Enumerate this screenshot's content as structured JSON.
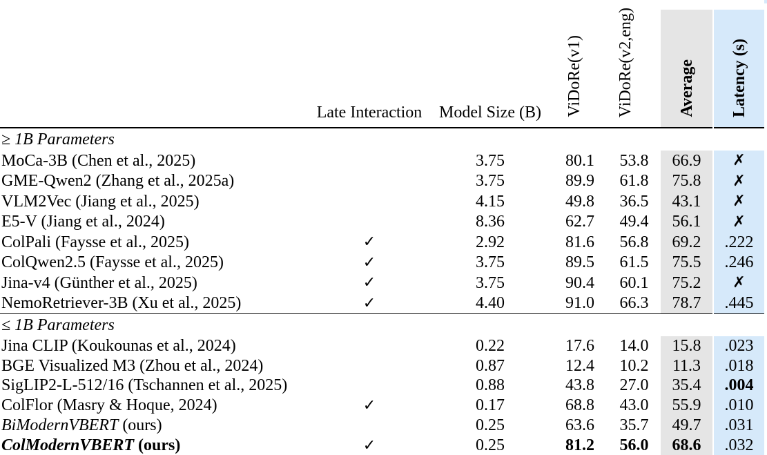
{
  "colors": {
    "average_col_bg": "#e5e5e5",
    "latency_col_bg": "#d6e9fa"
  },
  "icons": {
    "check": "✓",
    "cross": "✗"
  },
  "table": {
    "headers": {
      "late_interaction": "Late Interaction",
      "model_size": "Model Size (B)",
      "vidore_v1": "ViDoRe(v1)",
      "vidore_v2": "ViDoRe(v2,eng)",
      "average": "Average",
      "latency": "Latency (s)"
    },
    "sections": [
      {
        "label": "≥ 1B Parameters",
        "rows": [
          {
            "name": "MoCa-3B (Chen et al., 2025)",
            "name_style": "normal",
            "late_interaction": false,
            "model_size": "3.75",
            "vidore_v1": "80.1",
            "vidore_v2": "53.8",
            "average": "66.9",
            "latency": "",
            "latency_cross": true,
            "bold_fields": []
          },
          {
            "name": "GME-Qwen2 (Zhang et al., 2025a)",
            "name_style": "normal",
            "late_interaction": false,
            "model_size": "3.75",
            "vidore_v1": "89.9",
            "vidore_v2": "61.8",
            "average": "75.8",
            "latency": "",
            "latency_cross": true,
            "bold_fields": []
          },
          {
            "name": "VLM2Vec (Jiang et al., 2025)",
            "name_style": "normal",
            "late_interaction": false,
            "model_size": "4.15",
            "vidore_v1": "49.8",
            "vidore_v2": "36.5",
            "average": "43.1",
            "latency": "",
            "latency_cross": true,
            "bold_fields": []
          },
          {
            "name": "E5-V (Jiang et al., 2024)",
            "name_style": "normal",
            "late_interaction": false,
            "model_size": "8.36",
            "vidore_v1": "62.7",
            "vidore_v2": "49.4",
            "average": "56.1",
            "latency": "",
            "latency_cross": true,
            "bold_fields": []
          },
          {
            "name": "ColPali (Faysse et al., 2025)",
            "name_style": "normal",
            "late_interaction": true,
            "model_size": "2.92",
            "vidore_v1": "81.6",
            "vidore_v2": "56.8",
            "average": "69.2",
            "latency": ".222",
            "latency_cross": false,
            "bold_fields": []
          },
          {
            "name": "ColQwen2.5 (Faysse et al., 2025)",
            "name_style": "normal",
            "late_interaction": true,
            "model_size": "3.75",
            "vidore_v1": "89.5",
            "vidore_v2": "61.5",
            "average": "75.5",
            "latency": ".246",
            "latency_cross": false,
            "bold_fields": []
          },
          {
            "name": "Jina-v4 (Günther et al., 2025)",
            "name_style": "normal",
            "late_interaction": true,
            "model_size": "3.75",
            "vidore_v1": "90.4",
            "vidore_v2": "60.1",
            "average": "75.2",
            "latency": "",
            "latency_cross": true,
            "bold_fields": []
          },
          {
            "name": "NemoRetriever-3B (Xu et al., 2025)",
            "name_style": "normal",
            "late_interaction": true,
            "model_size": "4.40",
            "vidore_v1": "91.0",
            "vidore_v2": "66.3",
            "average": "78.7",
            "latency": ".445",
            "latency_cross": false,
            "bold_fields": []
          }
        ]
      },
      {
        "label": "≤ 1B Parameters",
        "rows": [
          {
            "name": "Jina CLIP (Koukounas et al., 2024)",
            "name_style": "normal",
            "late_interaction": false,
            "model_size": "0.22",
            "vidore_v1": "17.6",
            "vidore_v2": "14.0",
            "average": "15.8",
            "latency": ".023",
            "latency_cross": false,
            "bold_fields": []
          },
          {
            "name": "BGE Visualized M3 (Zhou et al., 2024)",
            "name_style": "normal",
            "late_interaction": false,
            "model_size": "0.87",
            "vidore_v1": "12.4",
            "vidore_v2": "10.2",
            "average": "11.3",
            "latency": ".018",
            "latency_cross": false,
            "bold_fields": []
          },
          {
            "name": "SigLIP2-L-512/16 (Tschannen et al., 2025)",
            "name_style": "normal",
            "late_interaction": false,
            "model_size": "0.88",
            "vidore_v1": "43.8",
            "vidore_v2": "27.0",
            "average": "35.4",
            "latency": ".004",
            "latency_cross": false,
            "bold_fields": [
              "latency"
            ]
          },
          {
            "name": "ColFlor (Masry & Hoque, 2024)",
            "name_style": "normal",
            "late_interaction": true,
            "model_size": "0.17",
            "vidore_v1": "68.8",
            "vidore_v2": "43.0",
            "average": "55.9",
            "latency": ".010",
            "latency_cross": false,
            "bold_fields": []
          },
          {
            "name": "BiModernVBERT",
            "name_suffix": " (ours)",
            "name_style": "italic",
            "suffix_bold": false,
            "late_interaction": false,
            "model_size": "0.25",
            "vidore_v1": "63.6",
            "vidore_v2": "35.7",
            "average": "49.7",
            "latency": ".031",
            "latency_cross": false,
            "bold_fields": []
          },
          {
            "name": "ColModernVBERT",
            "name_suffix": " (ours)",
            "name_style": "bold-italic",
            "suffix_bold": true,
            "late_interaction": true,
            "model_size": "0.25",
            "vidore_v1": "81.2",
            "vidore_v2": "56.0",
            "average": "68.6",
            "latency": ".032",
            "latency_cross": false,
            "bold_fields": [
              "vidore_v1",
              "vidore_v2",
              "average"
            ]
          }
        ]
      }
    ]
  }
}
